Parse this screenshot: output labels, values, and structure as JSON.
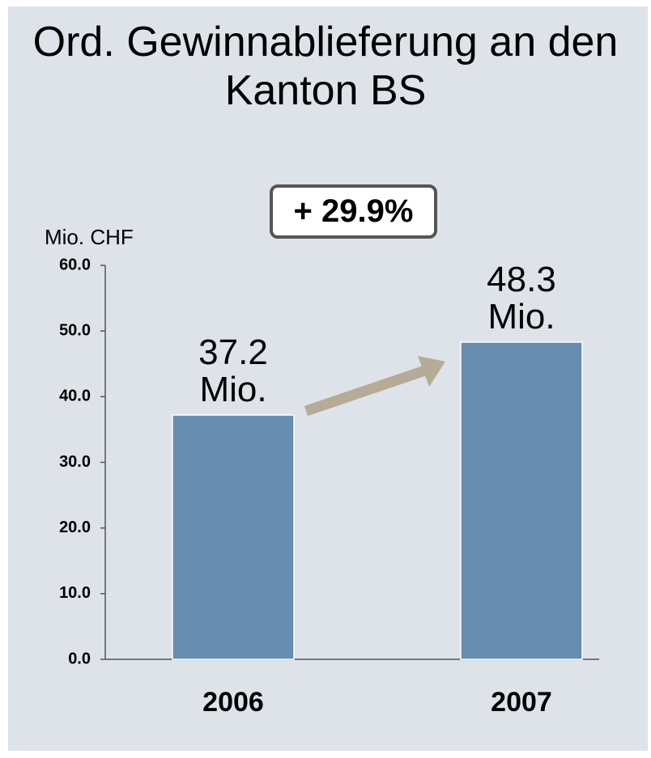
{
  "chart_data": {
    "type": "bar",
    "title": "Ord. Gewinnablieferung an den Kanton BS",
    "y_axis_label": "Mio. CHF",
    "annotation": "+ 29.9%",
    "categories": [
      "2006",
      "2007"
    ],
    "values": [
      37.2,
      48.3
    ],
    "value_labels": [
      "37.2 Mio.",
      "48.3 Mio."
    ],
    "color": "#678db0",
    "ylim": [
      0,
      60
    ],
    "yticks": [
      {
        "value": 0,
        "label": "0.0"
      },
      {
        "value": 10,
        "label": "10.0"
      },
      {
        "value": 20,
        "label": "20.0"
      },
      {
        "value": 30,
        "label": "30.0"
      },
      {
        "value": 40,
        "label": "40.0"
      },
      {
        "value": 50,
        "label": "50.0"
      },
      {
        "value": 60,
        "label": "60.0"
      }
    ],
    "grid": false
  }
}
